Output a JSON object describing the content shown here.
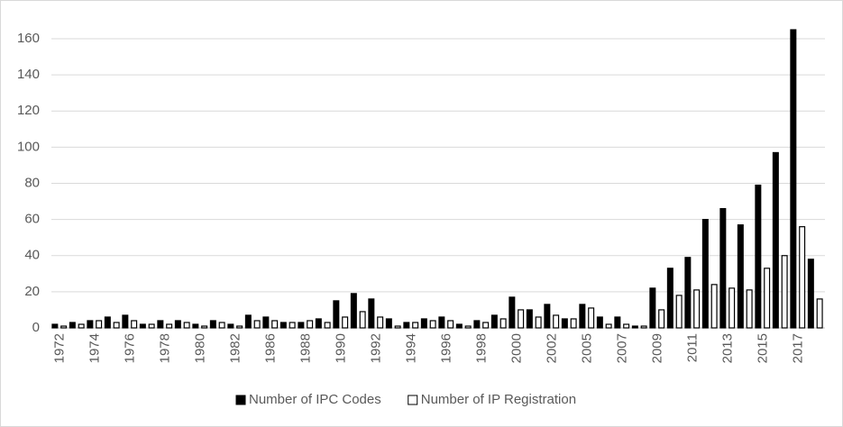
{
  "chart_data": {
    "type": "bar",
    "categories": [
      "1972",
      null,
      "1974",
      null,
      "1976",
      null,
      "1978",
      null,
      "1980",
      null,
      "1982",
      null,
      "1986",
      null,
      "1988",
      null,
      "1990",
      null,
      "1992",
      null,
      "1994",
      null,
      "1996",
      null,
      "1998",
      null,
      "2000",
      null,
      "2002",
      null,
      "2005",
      null,
      "2007",
      null,
      "2009",
      null,
      "2011",
      null,
      "2013",
      null,
      "2015",
      null,
      "2017",
      null
    ],
    "series": [
      {
        "name": "Number of IPC Codes",
        "color": "#000000",
        "values": [
          2,
          3,
          4,
          6,
          7,
          2,
          4,
          4,
          2,
          4,
          2,
          7,
          6,
          3,
          3,
          5,
          15,
          19,
          16,
          5,
          3,
          5,
          6,
          2,
          4,
          7,
          17,
          10,
          13,
          5,
          13,
          6,
          6,
          1,
          22,
          33,
          39,
          60,
          66,
          57,
          79,
          97,
          165,
          38
        ]
      },
      {
        "name": "Number of IP Registration",
        "color": "#ffffff",
        "values": [
          1,
          2,
          4,
          3,
          4,
          2,
          2,
          3,
          1,
          3,
          1,
          4,
          4,
          3,
          4,
          3,
          6,
          9,
          6,
          1,
          3,
          4,
          4,
          1,
          3,
          5,
          10,
          6,
          7,
          5,
          11,
          2,
          2,
          1,
          10,
          18,
          21,
          24,
          22,
          21,
          33,
          40,
          56,
          16
        ]
      }
    ],
    "ylim": [
      0,
      170
    ],
    "yticks": [
      0,
      20,
      40,
      60,
      80,
      100,
      120,
      140,
      160
    ],
    "grid": true,
    "legend": "bottom"
  }
}
